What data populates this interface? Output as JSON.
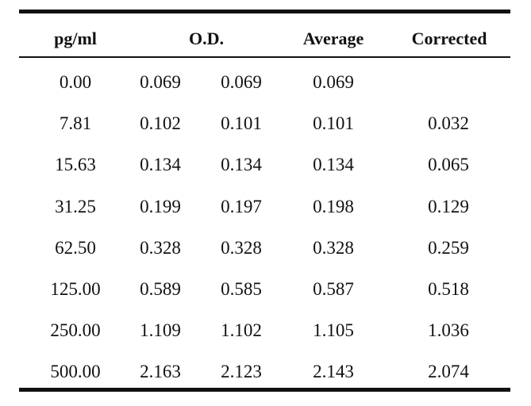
{
  "table": {
    "headers": {
      "pgml": "pg/ml",
      "od": "O.D.",
      "average": "Average",
      "corrected": "Corrected"
    },
    "rows": [
      {
        "pgml": "0.00",
        "od1": "0.069",
        "od2": "0.069",
        "average": "0.069",
        "corrected": ""
      },
      {
        "pgml": "7.81",
        "od1": "0.102",
        "od2": "0.101",
        "average": "0.101",
        "corrected": "0.032"
      },
      {
        "pgml": "15.63",
        "od1": "0.134",
        "od2": "0.134",
        "average": "0.134",
        "corrected": "0.065"
      },
      {
        "pgml": "31.25",
        "od1": "0.199",
        "od2": "0.197",
        "average": "0.198",
        "corrected": "0.129"
      },
      {
        "pgml": "62.50",
        "od1": "0.328",
        "od2": "0.328",
        "average": "0.328",
        "corrected": "0.259"
      },
      {
        "pgml": "125.00",
        "od1": "0.589",
        "od2": "0.585",
        "average": "0.587",
        "corrected": "0.518"
      },
      {
        "pgml": "250.00",
        "od1": "1.109",
        "od2": "1.102",
        "average": "1.105",
        "corrected": "1.036"
      },
      {
        "pgml": "500.00",
        "od1": "2.163",
        "od2": "2.123",
        "average": "2.143",
        "corrected": "2.074"
      }
    ]
  }
}
